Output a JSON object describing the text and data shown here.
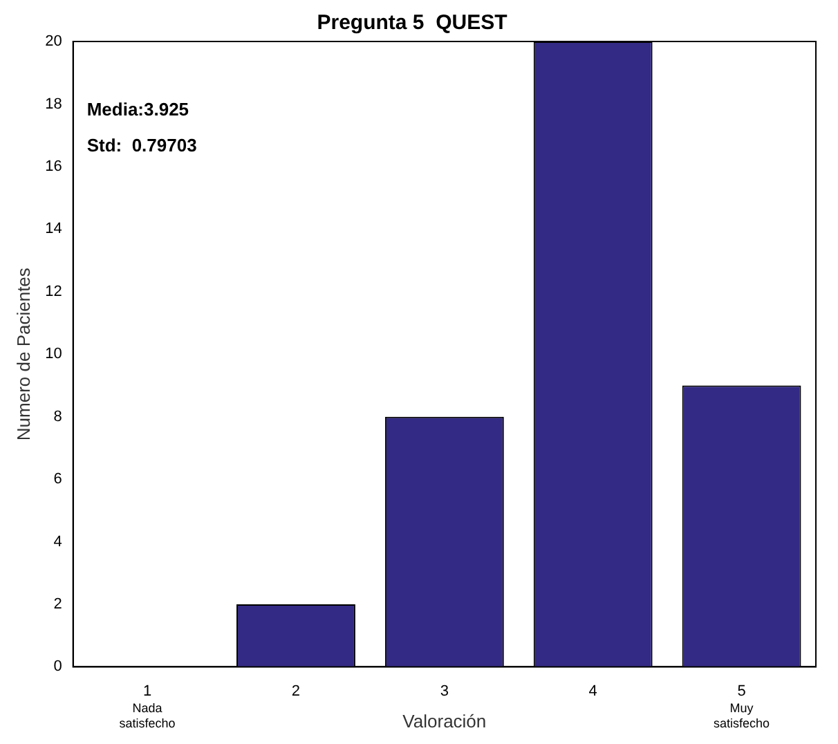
{
  "chart_data": {
    "type": "bar",
    "title": "Pregunta 5  QUEST",
    "xlabel": "Valoración",
    "ylabel": "Numero de Pacientes",
    "categories": [
      "1",
      "2",
      "3",
      "4",
      "5"
    ],
    "values": [
      0,
      2,
      8,
      20,
      9
    ],
    "color": "#332a85",
    "ylim": [
      0,
      20
    ],
    "yticks": [
      0,
      2,
      4,
      6,
      8,
      10,
      12,
      14,
      16,
      18,
      20
    ],
    "grid": false,
    "legend": false,
    "annotations": [
      "Media:3.925",
      "Std:  0.79703",
      "Nada\nsatisfecho",
      "Muy\nsatisfecho"
    ]
  }
}
